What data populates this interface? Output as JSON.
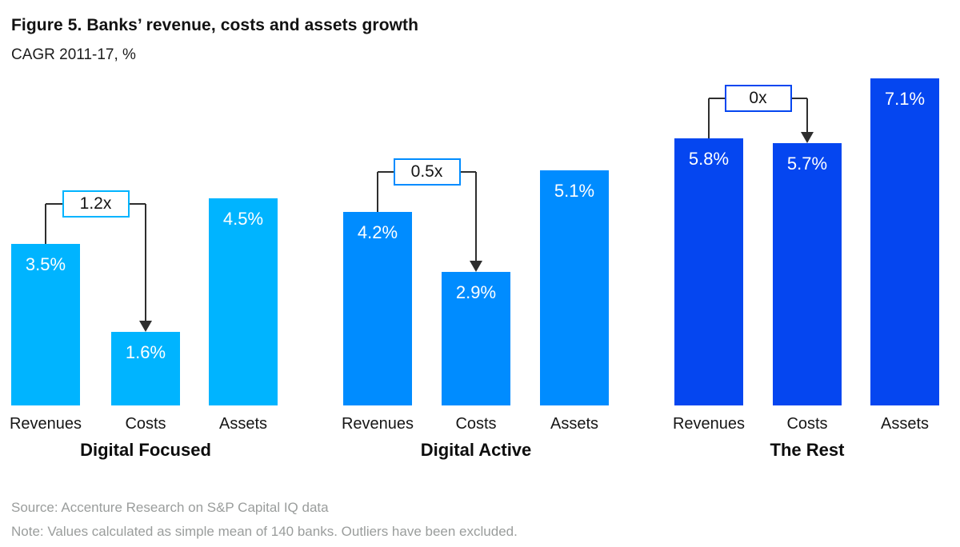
{
  "header": {
    "title": "Figure 5. Banks’ revenue, costs and assets growth",
    "subtitle": "CAGR 2011-17, %"
  },
  "chart_data": {
    "type": "bar",
    "title": "Figure 5. Banks’ revenue, costs and assets growth",
    "subtitle": "CAGR 2011-17, %",
    "unit": "%",
    "categories": [
      "Revenues",
      "Costs",
      "Assets"
    ],
    "groups": [
      {
        "label": "Digital Focused",
        "color": "#00B4FF",
        "values": [
          3.5,
          1.6,
          4.5
        ],
        "value_labels": [
          "3.5%",
          "1.6%",
          "4.5%"
        ],
        "ratio_annotation": "1.2x"
      },
      {
        "label": "Digital Active",
        "color": "#008CFF",
        "values": [
          4.2,
          2.9,
          5.1
        ],
        "value_labels": [
          "4.2%",
          "2.9%",
          "5.1%"
        ],
        "ratio_annotation": "0.5x"
      },
      {
        "label": "The Rest",
        "color": "#0546F0",
        "values": [
          5.8,
          5.7,
          7.1
        ],
        "value_labels": [
          "5.8%",
          "5.7%",
          "7.1%"
        ],
        "ratio_annotation": "0x"
      }
    ],
    "ylim": [
      0,
      7.5
    ],
    "grid": false,
    "axes_hidden": true,
    "annotation_arrow_color": "#2e2e2e"
  },
  "footer": {
    "source": "Source: Accenture Research on S&P Capital IQ data",
    "note": "Note: Values calculated as simple mean of 140 banks. Outliers have been excluded."
  }
}
